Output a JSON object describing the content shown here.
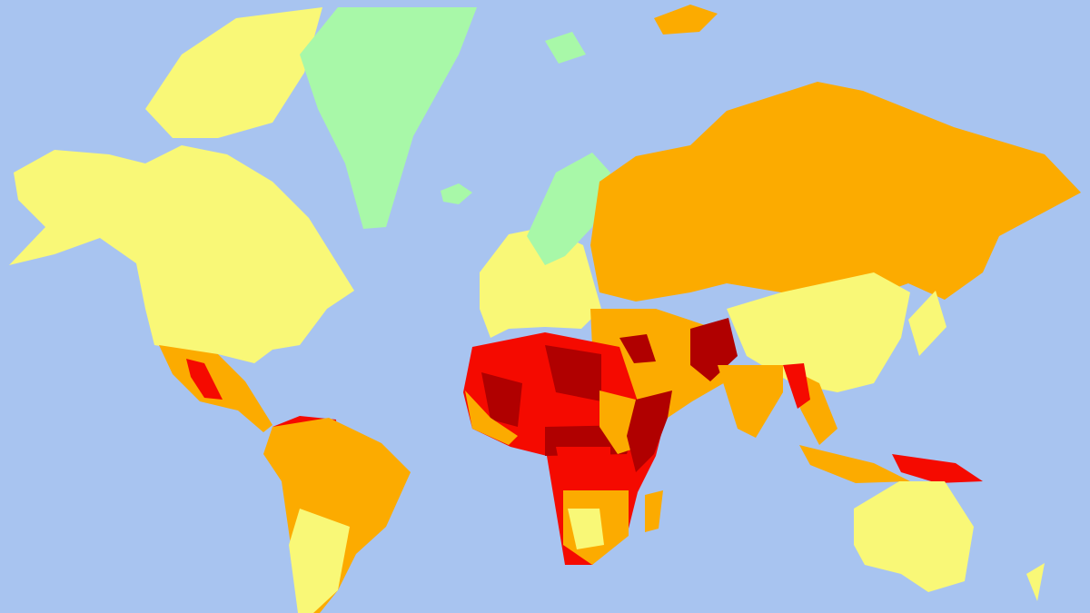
{
  "map": {
    "projection": "mercator-world",
    "colors": {
      "ocean": "#a8c4f0",
      "level_green": "#a8f8a8",
      "level_yellow": "#f9f877",
      "level_orange": "#fcab00",
      "level_red": "#f50a00",
      "level_darkred": "#b00000"
    },
    "regions": [
      {
        "name": "north-america",
        "level": "level_yellow"
      },
      {
        "name": "canadian-arctic",
        "level": "level_yellow"
      },
      {
        "name": "greenland",
        "level": "level_green"
      },
      {
        "name": "iceland",
        "level": "level_green"
      },
      {
        "name": "mexico-central-america",
        "level": "level_orange"
      },
      {
        "name": "mexico-hotspots",
        "level": "level_red"
      },
      {
        "name": "venezuela-colombia",
        "level": "level_red"
      },
      {
        "name": "south-america",
        "level": "level_orange"
      },
      {
        "name": "southern-cone",
        "level": "level_yellow"
      },
      {
        "name": "europe",
        "level": "level_yellow"
      },
      {
        "name": "scandinavia",
        "level": "level_green"
      },
      {
        "name": "russia",
        "level": "level_orange"
      },
      {
        "name": "china",
        "level": "level_yellow"
      },
      {
        "name": "middle-east",
        "level": "level_orange"
      },
      {
        "name": "iraq-syria",
        "level": "level_darkred"
      },
      {
        "name": "afghanistan-pakistan",
        "level": "level_darkred"
      },
      {
        "name": "india",
        "level": "level_orange"
      },
      {
        "name": "north-africa-sahel",
        "level": "level_red"
      },
      {
        "name": "libya",
        "level": "level_darkred"
      },
      {
        "name": "mali",
        "level": "level_darkred"
      },
      {
        "name": "central-africa",
        "level": "level_darkred"
      },
      {
        "name": "west-africa-coast",
        "level": "level_orange"
      },
      {
        "name": "east-africa",
        "level": "level_orange"
      },
      {
        "name": "somalia-yemen",
        "level": "level_darkred"
      },
      {
        "name": "drc",
        "level": "level_red"
      },
      {
        "name": "southern-africa",
        "level": "level_orange"
      },
      {
        "name": "south-africa-region",
        "level": "level_yellow"
      },
      {
        "name": "madagascar",
        "level": "level_orange"
      },
      {
        "name": "southeast-asia",
        "level": "level_orange"
      },
      {
        "name": "myanmar",
        "level": "level_red"
      },
      {
        "name": "indonesia",
        "level": "level_orange"
      },
      {
        "name": "papua",
        "level": "level_red"
      },
      {
        "name": "japan",
        "level": "level_yellow"
      },
      {
        "name": "australia",
        "level": "level_yellow"
      },
      {
        "name": "new-zealand",
        "level": "level_yellow"
      },
      {
        "name": "arctic-islands-russia",
        "level": "level_orange"
      },
      {
        "name": "svalbard",
        "level": "level_green"
      }
    ]
  }
}
